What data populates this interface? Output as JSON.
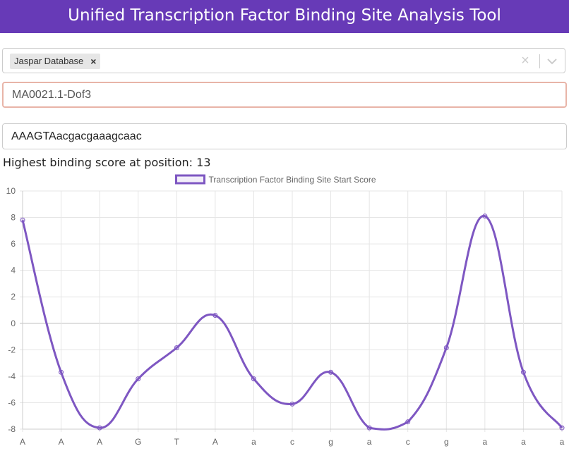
{
  "header": {
    "title": "Unified Transcription Factor Binding Site Analysis Tool"
  },
  "database_select": {
    "selected_tag": "Jaspar Database",
    "remove_glyph": "×",
    "clear_glyph": "×"
  },
  "tf_input": {
    "value": "MA0021.1-Dof3"
  },
  "sequence_input": {
    "value": "AAAGTAacgacgaaagcaac"
  },
  "result": {
    "text": "Highest binding score at position: 13"
  },
  "colors": {
    "header": "#673ab7",
    "series": "#7e57c2"
  },
  "chart_data": {
    "type": "line",
    "title": "",
    "xlabel": "",
    "ylabel": "",
    "categories": [
      "A",
      "A",
      "A",
      "G",
      "T",
      "A",
      "a",
      "c",
      "g",
      "a",
      "c",
      "g",
      "a",
      "a",
      "a"
    ],
    "series": [
      {
        "name": "Transcription Factor Binding Site Start Score",
        "values": [
          7.8,
          -3.7,
          -7.9,
          -4.2,
          -1.85,
          0.6,
          -4.2,
          -6.1,
          -3.7,
          -7.9,
          -7.45,
          -1.85,
          8.1,
          -3.7,
          -7.9
        ]
      }
    ],
    "ylim": [
      -8,
      10
    ],
    "yticks": [
      10,
      8,
      6,
      4,
      2,
      0,
      -2,
      -4,
      -6,
      -8
    ],
    "grid": true,
    "legend": "top"
  }
}
